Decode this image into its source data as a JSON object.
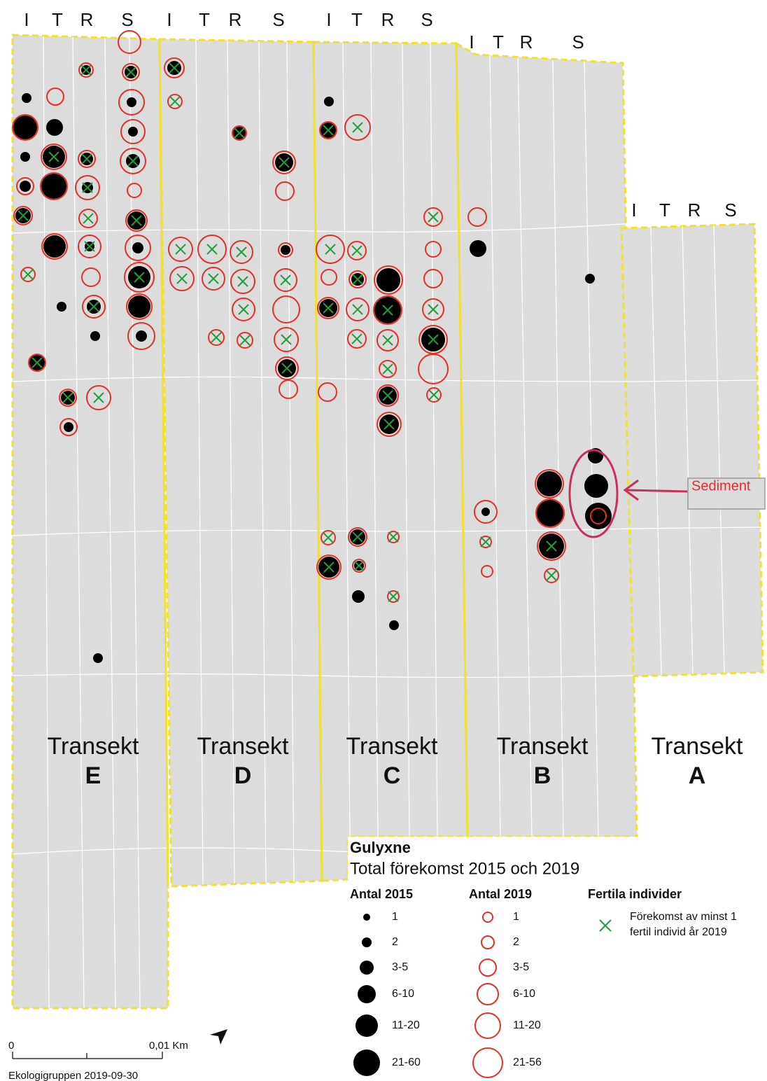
{
  "column_headers": [
    [
      "I",
      "T",
      "R",
      "S"
    ],
    [
      "I",
      "T",
      "R",
      "S"
    ],
    [
      "I",
      "T",
      "R",
      "S"
    ],
    [
      "I",
      "T",
      "R",
      "S"
    ],
    [
      "I",
      "T",
      "R",
      "S"
    ]
  ],
  "transects": [
    {
      "label": "Transekt",
      "letter": "E"
    },
    {
      "label": "Transekt",
      "letter": "D"
    },
    {
      "label": "Transekt",
      "letter": "C"
    },
    {
      "label": "Transekt",
      "letter": "B"
    },
    {
      "label": "Transekt",
      "letter": "A"
    }
  ],
  "annotation": "Sediment",
  "legend": {
    "title": "Gulyxne",
    "subtitle": "Total förekomst 2015 och 2019",
    "count_2015": {
      "heading": "Antal 2015",
      "classes": [
        "1",
        "2",
        "3-5",
        "6-10",
        "11-20",
        "21-60"
      ]
    },
    "count_2019": {
      "heading": "Antal 2019",
      "classes": [
        "1",
        "2",
        "3-5",
        "6-10",
        "11-20",
        "21-56"
      ]
    },
    "fertile": {
      "heading": "Fertila individer",
      "description": [
        "Förekomst av minst 1",
        "fertil individ år 2019"
      ]
    }
  },
  "scale_bar": {
    "start": "0",
    "end": "0,01 Km"
  },
  "credit": "Ekologigruppen 2019-09-30"
}
